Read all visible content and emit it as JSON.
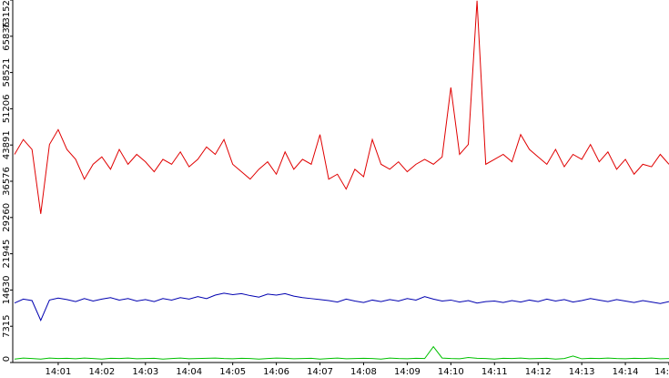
{
  "chart_data": {
    "type": "line",
    "x": [
      0,
      0.2,
      0.4,
      0.6,
      0.8,
      1,
      1.2,
      1.4,
      1.6,
      1.8,
      2,
      2.2,
      2.4,
      2.6,
      2.8,
      3,
      3.2,
      3.4,
      3.6,
      3.8,
      4,
      4.2,
      4.4,
      4.6,
      4.8,
      5,
      5.2,
      5.4,
      5.6,
      5.8,
      6,
      6.2,
      6.4,
      6.6,
      6.8,
      7,
      7.2,
      7.4,
      7.6,
      7.8,
      8,
      8.2,
      8.4,
      8.6,
      8.8,
      9,
      9.2,
      9.4,
      9.6,
      9.8,
      10,
      10.2,
      10.4,
      10.6,
      10.8,
      11,
      11.2,
      11.4,
      11.6,
      11.8,
      12,
      12.2,
      12.4,
      12.6,
      12.8,
      13,
      13.2,
      13.4,
      13.6,
      13.8,
      14,
      14.2,
      14.4,
      14.6,
      14.8,
      15
    ],
    "series": [
      {
        "color": "#e00000",
        "values": [
          42000,
          45000,
          43000,
          30000,
          44000,
          47000,
          43000,
          41000,
          37000,
          40000,
          41500,
          39000,
          43000,
          40000,
          42000,
          40500,
          38500,
          41000,
          40000,
          42500,
          39500,
          41000,
          43500,
          42000,
          45000,
          40000,
          38500,
          37000,
          39000,
          40500,
          38000,
          42500,
          39000,
          41000,
          40000,
          46000,
          37000,
          38000,
          35000,
          39000,
          37500,
          45000,
          40000,
          39000,
          40500,
          38500,
          40000,
          41000,
          40000,
          41500,
          55500,
          42000,
          44000,
          73000,
          40000,
          41000,
          42000,
          40500,
          46000,
          43000,
          41500,
          40000,
          43000,
          39500,
          42000,
          41000,
          44000,
          40500,
          42500,
          39000,
          41000,
          38000,
          40000,
          39500,
          42000,
          40000
        ]
      },
      {
        "color": "#0000b0",
        "values": [
          12000,
          12800,
          12500,
          8500,
          12600,
          13000,
          12700,
          12300,
          12900,
          12400,
          12800,
          13100,
          12600,
          12900,
          12400,
          12700,
          12300,
          12900,
          12600,
          13100,
          12800,
          13300,
          12900,
          13600,
          14000,
          13700,
          13900,
          13500,
          13200,
          13800,
          13600,
          13900,
          13400,
          13100,
          12900,
          12700,
          12500,
          12200,
          12800,
          12400,
          12100,
          12600,
          12300,
          12700,
          12400,
          12900,
          12600,
          13300,
          12800,
          12400,
          12600,
          12200,
          12500,
          12000,
          12300,
          12400,
          12100,
          12500,
          12200,
          12600,
          12300,
          12800,
          12400,
          12700,
          12200,
          12500,
          12900,
          12600,
          12300,
          12700,
          12400,
          12100,
          12500,
          12200,
          11900,
          12300
        ]
      },
      {
        "color": "#00c000",
        "values": [
          700,
          900,
          800,
          700,
          900,
          800,
          850,
          750,
          900,
          800,
          700,
          850,
          800,
          900,
          750,
          800,
          850,
          700,
          800,
          900,
          750,
          800,
          850,
          900,
          800,
          750,
          850,
          800,
          700,
          800,
          900,
          850,
          750,
          800,
          850,
          700,
          800,
          900,
          750,
          800,
          850,
          800,
          700,
          900,
          800,
          750,
          850,
          800,
          3200,
          900,
          800,
          750,
          1000,
          850,
          800,
          700,
          850,
          800,
          900,
          750,
          800,
          850,
          700,
          800,
          1300,
          750,
          850,
          800,
          900,
          800,
          750,
          850,
          800,
          900,
          750,
          800
        ]
      }
    ],
    "xlim": [
      0,
      15
    ],
    "ylim": [
      0,
      73152
    ],
    "xticks": [
      {
        "value": 1,
        "label": "14:01"
      },
      {
        "value": 2,
        "label": "14:02"
      },
      {
        "value": 3,
        "label": "14:03"
      },
      {
        "value": 4,
        "label": "14:04"
      },
      {
        "value": 5,
        "label": "14:05"
      },
      {
        "value": 6,
        "label": "14:06"
      },
      {
        "value": 7,
        "label": "14:07"
      },
      {
        "value": 8,
        "label": "14:08"
      },
      {
        "value": 9,
        "label": "14:09"
      },
      {
        "value": 10,
        "label": "14:10"
      },
      {
        "value": 11,
        "label": "14:11"
      },
      {
        "value": 12,
        "label": "14:12"
      },
      {
        "value": 13,
        "label": "14:13"
      },
      {
        "value": 14,
        "label": "14:14"
      },
      {
        "value": 15,
        "label": "14:"
      }
    ],
    "yticks": [
      0,
      7315,
      14630,
      21945,
      29260,
      36576,
      43891,
      51206,
      58521,
      65836,
      73152
    ]
  }
}
